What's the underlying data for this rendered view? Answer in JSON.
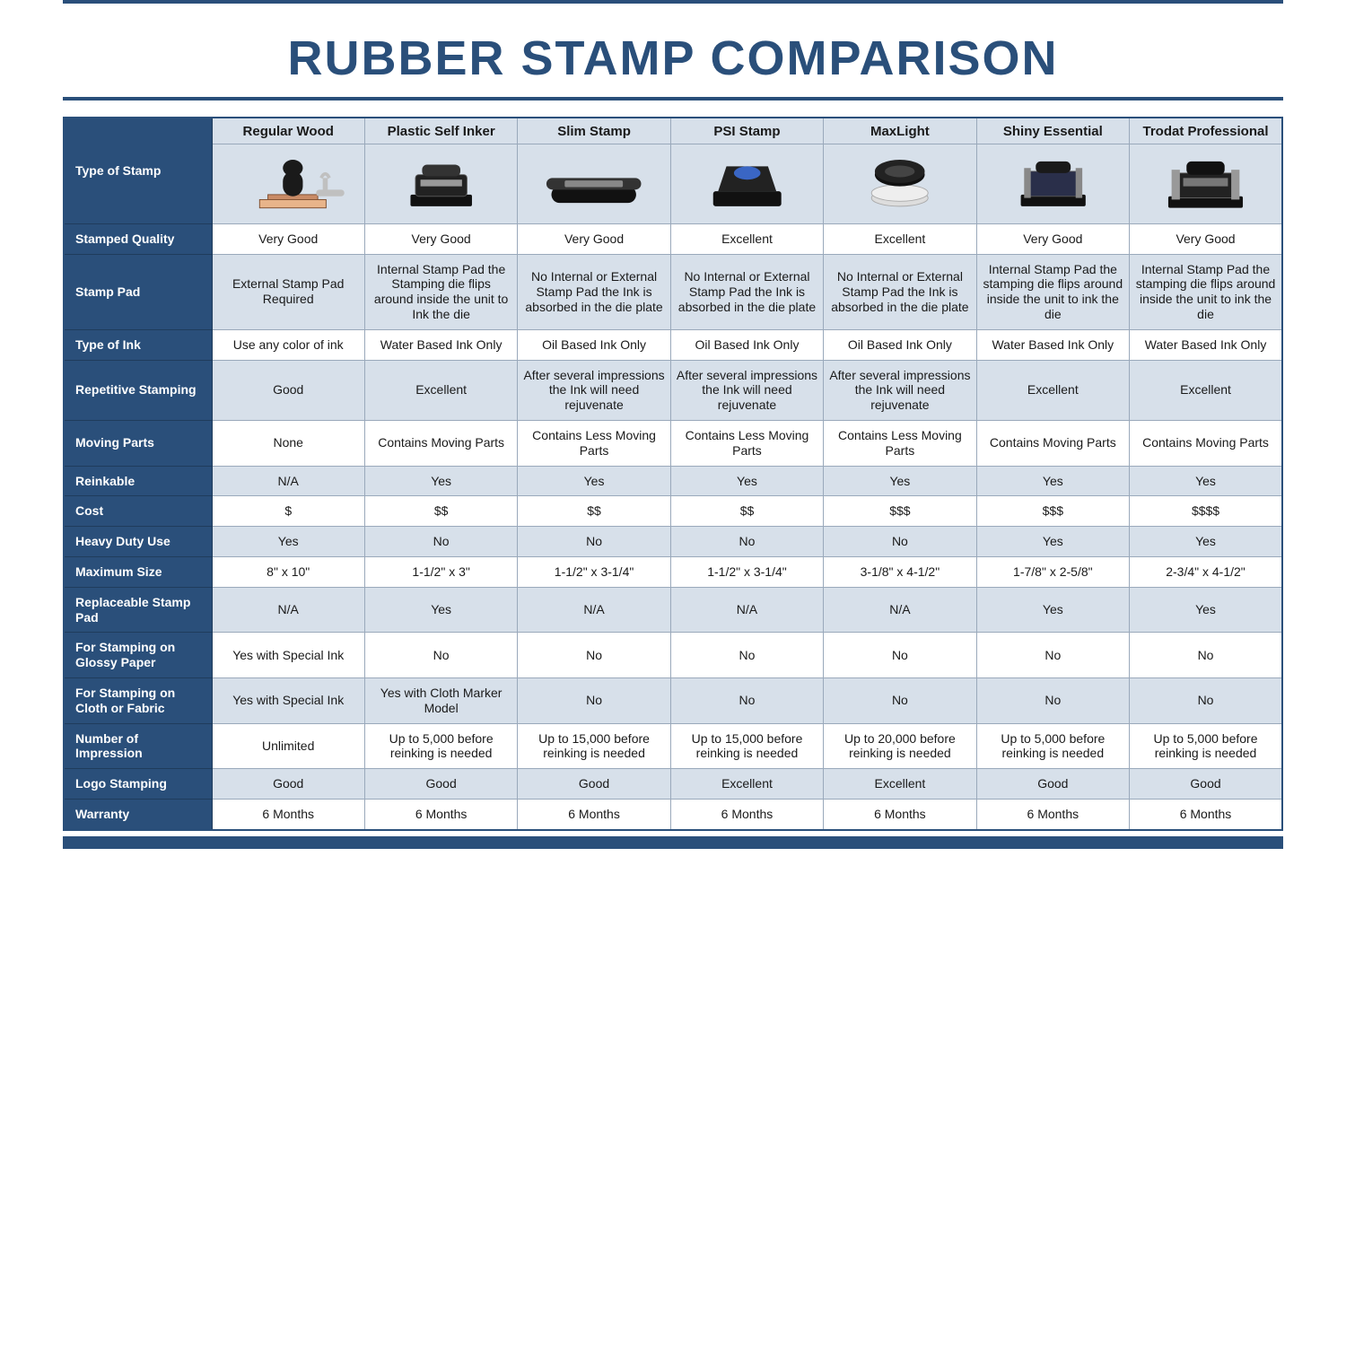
{
  "colors": {
    "brand": "#2a4f7a",
    "band": "#d7e0ea",
    "border": "#9aa9bb",
    "white": "#ffffff"
  },
  "title": "RUBBER STAMP COMPARISON",
  "columns": [
    "Regular Wood",
    "Plastic Self Inker",
    "Slim Stamp",
    "PSI Stamp",
    "MaxLight",
    "Shiny Essential",
    "Trodat Professional"
  ],
  "typeOfStampLabel": "Type of Stamp",
  "rows": [
    {
      "label": "Stamped Quality",
      "cells": [
        "Very Good",
        "Very Good",
        "Very Good",
        "Excellent",
        "Excellent",
        "Very Good",
        "Very Good"
      ]
    },
    {
      "label": "Stamp Pad",
      "cells": [
        "External Stamp Pad Required",
        "Internal Stamp Pad the Stamping die flips around inside the unit to Ink the die",
        "No Internal or External Stamp Pad the Ink is absorbed in the die plate",
        "No Internal or External Stamp Pad the Ink is absorbed in the die plate",
        "No Internal or External Stamp Pad the Ink is absorbed in the die plate",
        "Internal Stamp Pad the stamping die flips around inside the unit to ink the die",
        "Internal Stamp Pad the stamping die flips around inside the unit to ink the die"
      ]
    },
    {
      "label": "Type of Ink",
      "cells": [
        "Use any color of ink",
        "Water Based Ink Only",
        "Oil Based Ink Only",
        "Oil Based Ink Only",
        "Oil Based Ink Only",
        "Water Based Ink Only",
        "Water Based Ink Only"
      ]
    },
    {
      "label": "Repetitive Stamping",
      "cells": [
        "Good",
        "Excellent",
        "After several impressions the Ink will need rejuvenate",
        "After several impressions the Ink will need rejuvenate",
        "After several impressions the Ink will need rejuvenate",
        "Excellent",
        "Excellent"
      ]
    },
    {
      "label": "Moving Parts",
      "cells": [
        "None",
        "Contains Moving Parts",
        "Contains Less Moving Parts",
        "Contains Less Moving Parts",
        "Contains Less Moving Parts",
        "Contains Moving Parts",
        "Contains Moving Parts"
      ]
    },
    {
      "label": "Reinkable",
      "cells": [
        "N/A",
        "Yes",
        "Yes",
        "Yes",
        "Yes",
        "Yes",
        "Yes"
      ]
    },
    {
      "label": "Cost",
      "cells": [
        "$",
        "$$",
        "$$",
        "$$",
        "$$$",
        "$$$",
        "$$$$"
      ]
    },
    {
      "label": "Heavy Duty Use",
      "cells": [
        "Yes",
        "No",
        "No",
        "No",
        "No",
        "Yes",
        "Yes"
      ]
    },
    {
      "label": "Maximum Size",
      "cells": [
        "8\" x 10\"",
        "1-1/2\" x 3\"",
        "1-1/2\" x 3-1/4\"",
        "1-1/2\" x 3-1/4\"",
        "3-1/8\" x 4-1/2\"",
        "1-7/8\" x 2-5/8\"",
        "2-3/4\" x 4-1/2\""
      ]
    },
    {
      "label": "Replaceable Stamp Pad",
      "cells": [
        "N/A",
        "Yes",
        "N/A",
        "N/A",
        "N/A",
        "Yes",
        "Yes"
      ]
    },
    {
      "label": "For Stamping on Glossy Paper",
      "cells": [
        "Yes with Special Ink",
        "No",
        "No",
        "No",
        "No",
        "No",
        "No"
      ]
    },
    {
      "label": "For Stamping on Cloth or Fabric",
      "cells": [
        "Yes with Special Ink",
        "Yes with Cloth Marker Model",
        "No",
        "No",
        "No",
        "No",
        "No"
      ]
    },
    {
      "label": "Number of Impression",
      "cells": [
        "Unlimited",
        "Up to 5,000 before reinking is needed",
        "Up to 15,000 before reinking is needed",
        "Up to 15,000 before reinking is needed",
        "Up to 20,000 before reinking is needed",
        "Up to 5,000 before reinking is needed",
        "Up to 5,000 before reinking is needed"
      ]
    },
    {
      "label": "Logo Stamping",
      "cells": [
        "Good",
        "Good",
        "Good",
        "Excellent",
        "Excellent",
        "Good",
        "Good"
      ]
    },
    {
      "label": "Warranty",
      "cells": [
        "6 Months",
        "6 Months",
        "6 Months",
        "6 Months",
        "6 Months",
        "6 Months",
        "6 Months"
      ]
    }
  ],
  "layout": {
    "rowLabelWidthPx": 165,
    "titleFontSizePt": 40,
    "cellFontSizePt": 10,
    "altRowStart": 1
  }
}
